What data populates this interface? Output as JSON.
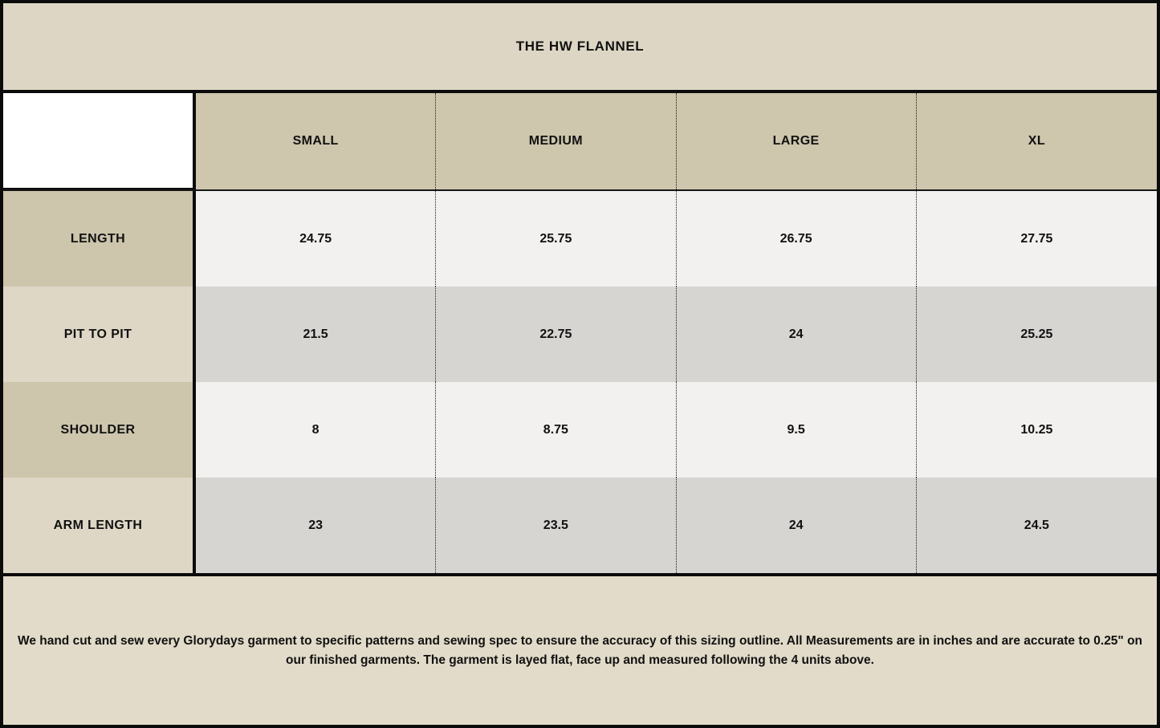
{
  "title": "THE HW FLANNEL",
  "table": {
    "corner_label": "",
    "column_headers": [
      "SMALL",
      "MEDIUM",
      "LARGE",
      "XL"
    ],
    "rows": [
      {
        "label": "LENGTH",
        "values": [
          "24.75",
          "25.75",
          "26.75",
          "27.75"
        ]
      },
      {
        "label": "PIT TO PIT",
        "values": [
          "21.5",
          "22.75",
          "24",
          "25.25"
        ]
      },
      {
        "label": "SHOULDER",
        "values": [
          "8",
          "8.75",
          "9.5",
          "10.25"
        ]
      },
      {
        "label": "ARM LENGTH",
        "values": [
          "23",
          "23.5",
          "24",
          "24.5"
        ]
      }
    ]
  },
  "footer": {
    "note": "We hand cut and sew every Glorydays garment to specific patterns and sewing spec to ensure the accuracy of this sizing outline. All Measurements are in inches and are accurate to 0.25\" on our finished garments. The garment is layed flat, face up and measured following the 4 units above."
  },
  "colors": {
    "border_black": "#0b0b0b",
    "title_bg": "#ddd6c4",
    "header_bg": "#cec6ad",
    "label_bg_odd": "#cdc5ac",
    "label_bg_even": "#ded7c5",
    "cell_bg_odd": "#f2f1ef",
    "cell_bg_even": "#d7d5d2",
    "footer_bg": "#e2dbc9",
    "corner_bg": "#ffffff",
    "text": "#111111"
  },
  "chart_data": {
    "type": "table",
    "title": "THE HW FLANNEL",
    "columns": [
      "SMALL",
      "MEDIUM",
      "LARGE",
      "XL"
    ],
    "rows": [
      {
        "label": "LENGTH",
        "values": [
          24.75,
          25.75,
          26.75,
          27.75
        ]
      },
      {
        "label": "PIT TO PIT",
        "values": [
          21.5,
          22.75,
          24,
          25.25
        ]
      },
      {
        "label": "SHOULDER",
        "values": [
          8,
          8.75,
          9.5,
          10.25
        ]
      },
      {
        "label": "ARM LENGTH",
        "values": [
          23,
          23.5,
          24,
          24.5
        ]
      }
    ],
    "units": "inches",
    "notes": "Measurements accurate to 0.25 inch; garment layed flat, face up."
  }
}
